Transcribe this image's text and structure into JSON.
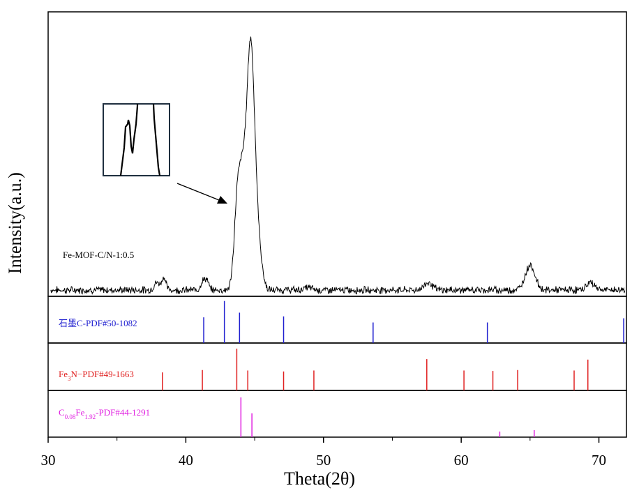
{
  "chart_data": {
    "type": "line",
    "xlabel": "Theta(2θ)",
    "ylabel": "Intensity(a.u.)",
    "xlim": [
      30,
      72
    ],
    "x_ticks": [
      30,
      40,
      50,
      60,
      70
    ],
    "sample": {
      "name": "Fe-MOF-C/N-1:0.5",
      "color": "#000000",
      "peaks": [
        {
          "x": 37.9,
          "h": 3,
          "w": 0.2
        },
        {
          "x": 38.4,
          "h": 5,
          "w": 0.15
        },
        {
          "x": 41.2,
          "h": 3,
          "w": 0.15
        },
        {
          "x": 41.5,
          "h": 4,
          "w": 0.15
        },
        {
          "x": 43.8,
          "h": 42,
          "w": 0.25
        },
        {
          "x": 44.15,
          "h": 18,
          "w": 0.18
        },
        {
          "x": 44.7,
          "h": 100,
          "w": 0.32
        },
        {
          "x": 45.35,
          "h": 10,
          "w": 0.25
        },
        {
          "x": 48.9,
          "h": 1,
          "w": 0.3
        },
        {
          "x": 57.6,
          "h": 3,
          "w": 0.3
        },
        {
          "x": 65.0,
          "h": 10,
          "w": 0.35
        },
        {
          "x": 69.4,
          "h": 3,
          "w": 0.3
        }
      ]
    },
    "references": [
      {
        "name_parts": [
          {
            "t": "石墨C-PDF#50-1082"
          }
        ],
        "color": "#1f1fd0",
        "lines": [
          {
            "x": 41.3,
            "h": 0.55
          },
          {
            "x": 42.8,
            "h": 0.9
          },
          {
            "x": 43.9,
            "h": 0.65
          },
          {
            "x": 47.1,
            "h": 0.57
          },
          {
            "x": 53.6,
            "h": 0.44
          },
          {
            "x": 61.9,
            "h": 0.44
          },
          {
            "x": 71.8,
            "h": 0.53
          }
        ]
      },
      {
        "name_parts": [
          {
            "t": "Fe"
          },
          {
            "t": "3",
            "sub": true
          },
          {
            "t": "N−PDF#49-1663"
          }
        ],
        "color": "#e02020",
        "lines": [
          {
            "x": 38.3,
            "h": 0.38
          },
          {
            "x": 41.2,
            "h": 0.43
          },
          {
            "x": 43.7,
            "h": 0.88
          },
          {
            "x": 44.5,
            "h": 0.42
          },
          {
            "x": 47.1,
            "h": 0.4
          },
          {
            "x": 49.3,
            "h": 0.42
          },
          {
            "x": 57.5,
            "h": 0.66
          },
          {
            "x": 60.2,
            "h": 0.42
          },
          {
            "x": 62.3,
            "h": 0.41
          },
          {
            "x": 64.1,
            "h": 0.43
          },
          {
            "x": 68.2,
            "h": 0.42
          },
          {
            "x": 69.2,
            "h": 0.65
          }
        ]
      },
      {
        "name_parts": [
          {
            "t": "C"
          },
          {
            "t": "0.08",
            "sub": true
          },
          {
            "t": "Fe"
          },
          {
            "t": "1.92",
            "sub": true
          },
          {
            "t": "-PDF#44-1291"
          }
        ],
        "color": "#e020e0",
        "lines": [
          {
            "x": 44.0,
            "h": 0.85
          },
          {
            "x": 44.8,
            "h": 0.51
          },
          {
            "x": 62.8,
            "h": 0.12
          },
          {
            "x": 65.3,
            "h": 0.15
          }
        ]
      }
    ]
  }
}
